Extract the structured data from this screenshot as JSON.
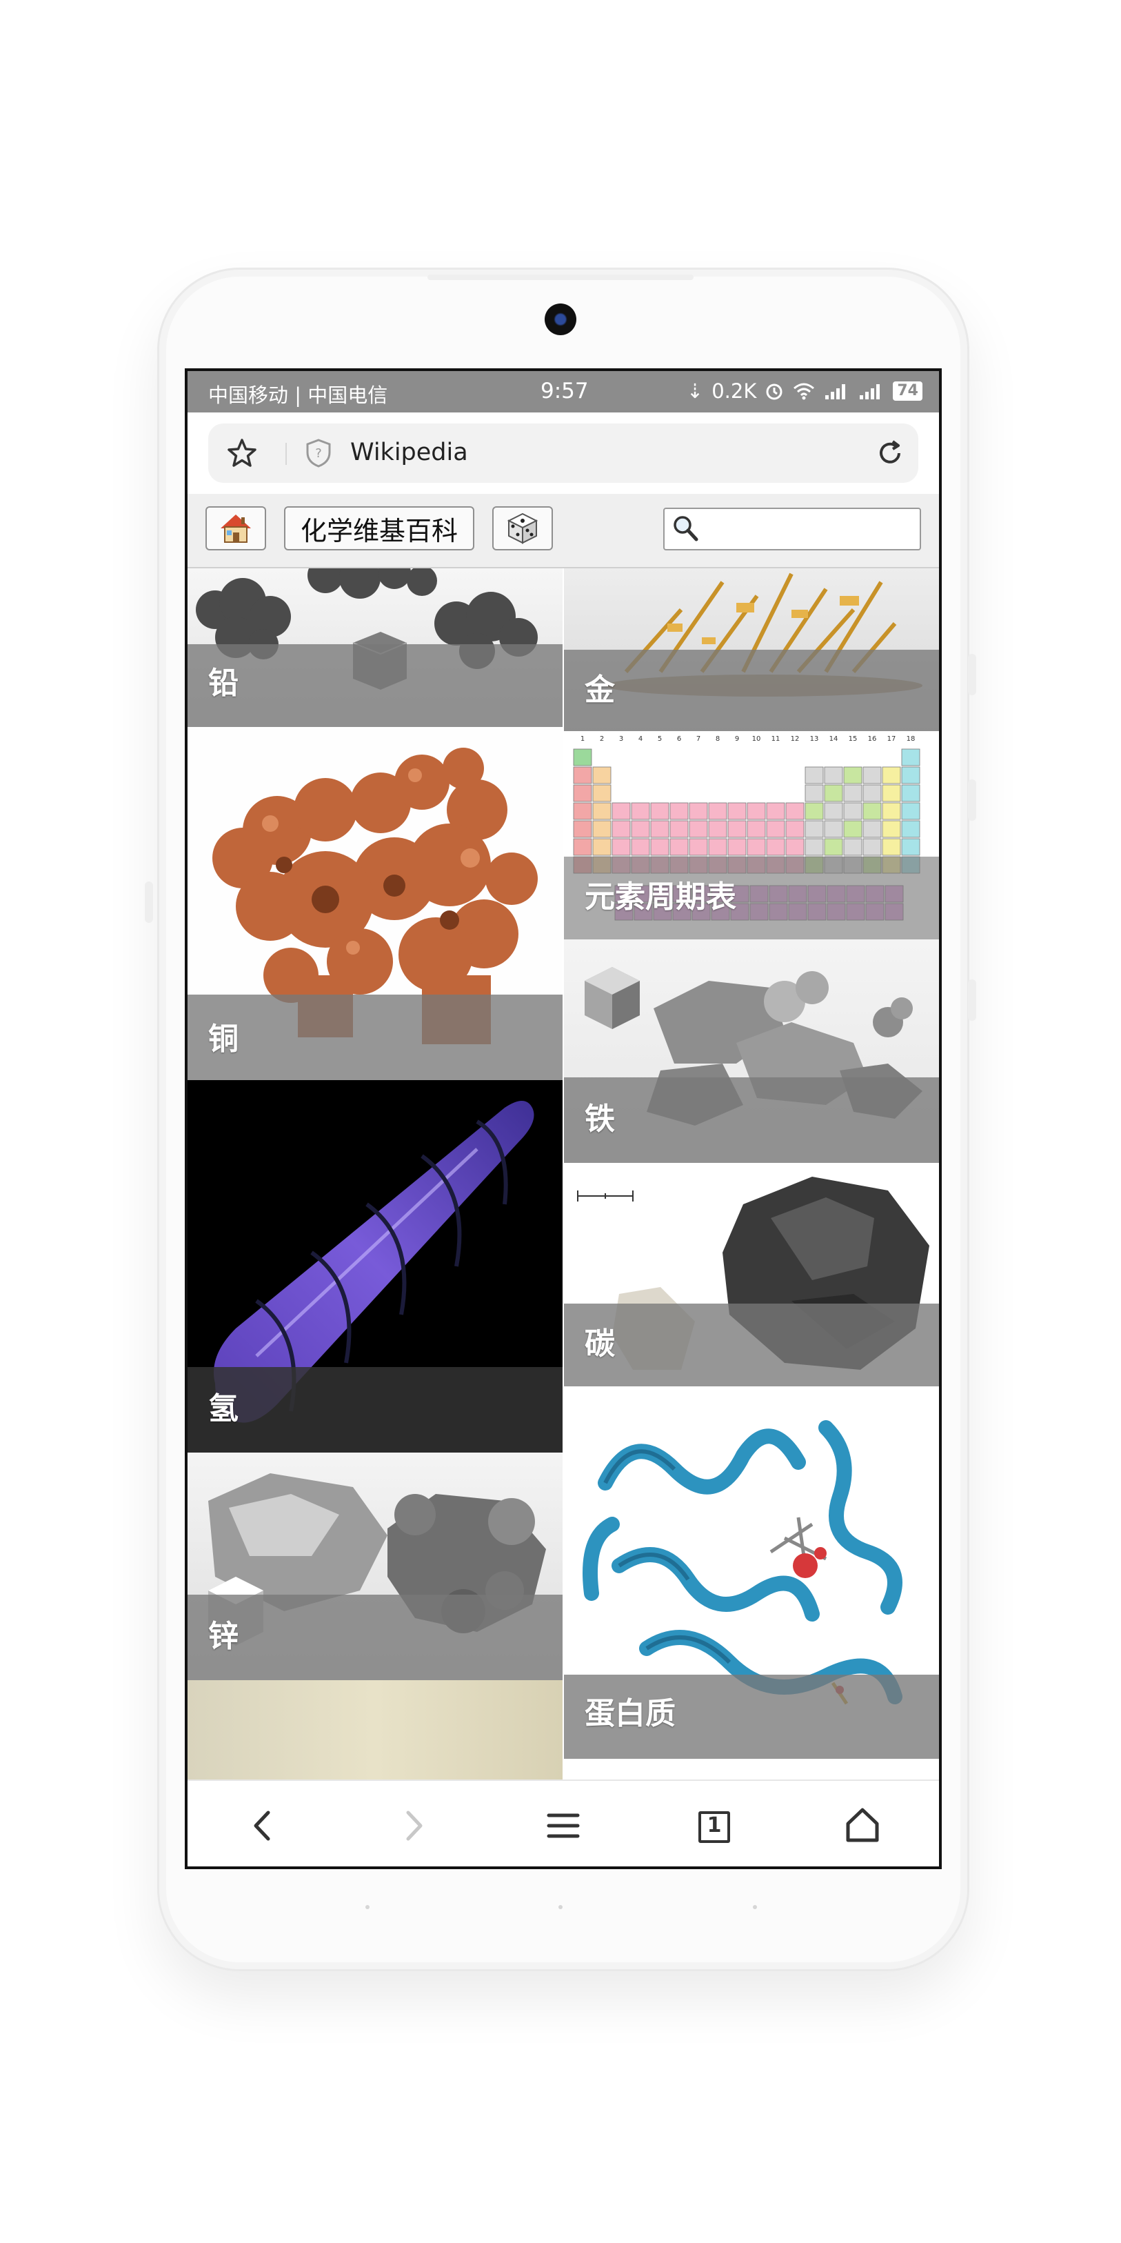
{
  "status_bar": {
    "carriers": "中国移动 | 中国电信",
    "time": "9:57",
    "net_speed": "0.2K",
    "battery": "74"
  },
  "browser": {
    "url": "Wikipedia"
  },
  "toolbar": {
    "title_button": "化学维基百科",
    "home_icon": "house-icon",
    "random_icon": "dice-icon",
    "search_placeholder": ""
  },
  "tiles": [
    {
      "label": "铅"
    },
    {
      "label": "金"
    },
    {
      "label": "铜"
    },
    {
      "label": "元素周期表"
    },
    {
      "label": "铁"
    },
    {
      "label": "氢"
    },
    {
      "label": "碳"
    },
    {
      "label": "锌"
    },
    {
      "label": "蛋白质"
    },
    {
      "label": ""
    }
  ],
  "bottom_nav": {
    "tabs_count": "1",
    "icons": [
      "back-icon",
      "forward-icon",
      "menu-icon",
      "tabs-icon",
      "home-icon"
    ]
  },
  "periodic_table": {
    "group_numbers": [
      "1",
      "2",
      "3",
      "4",
      "5",
      "6",
      "7",
      "8",
      "9",
      "10",
      "11",
      "12",
      "13",
      "14",
      "15",
      "16",
      "17",
      "18"
    ]
  }
}
